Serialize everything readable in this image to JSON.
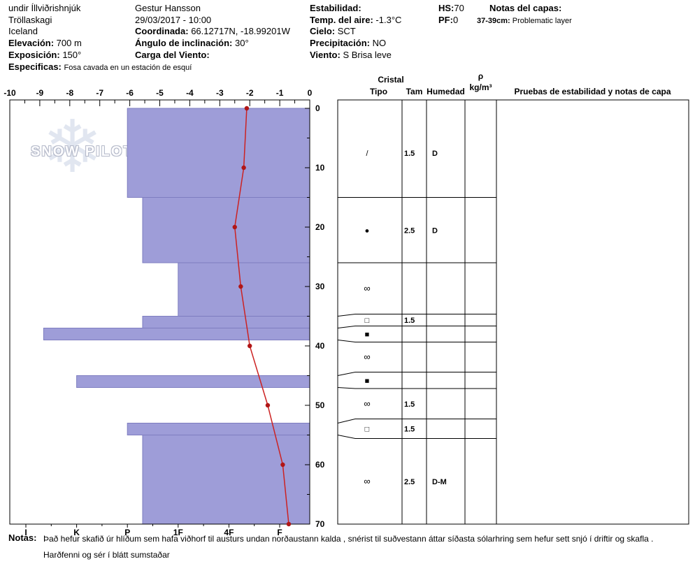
{
  "header": {
    "location": {
      "line1": "undir Íllviðrishnjúk",
      "line2": "Tröllaskagi",
      "line3": "Iceland"
    },
    "elevation": {
      "label": "Elevación:",
      "value": "700 m"
    },
    "aspect": {
      "label": "Exposición:",
      "value": "150°"
    },
    "specifics": {
      "label": "Especificas:",
      "value": "Fosa cavada en un estación de esquí"
    },
    "observer": {
      "name": "Gestur Hansson",
      "datetime": "29/03/2017 - 10:00"
    },
    "coordinates": {
      "label": "Coordinada:",
      "value": "66.12717N, -18.99201W"
    },
    "slope_angle": {
      "label": "Ángulo de inclinación:",
      "value": "30°"
    },
    "wind_loading": {
      "label": "Carga del Viento:",
      "value": ""
    },
    "stability": {
      "label": "Estabilidad:",
      "value": ""
    },
    "air_temp": {
      "label": "Temp. del aire:",
      "value": "-1.3°C"
    },
    "sky": {
      "label": "Cielo:",
      "value": "SCT"
    },
    "precip": {
      "label": "Precipitación:",
      "value": "NO"
    },
    "wind": {
      "label": "Viento:",
      "value": "S Brisa leve"
    },
    "hs": {
      "label": "HS:",
      "value": "70"
    },
    "pf": {
      "label": "PF:",
      "value": "0"
    },
    "layer_notes": {
      "label": "Notas del capas:",
      "entry_label": "37-39cm:",
      "entry_text": "Problematic layer"
    }
  },
  "logo": {
    "text": "SNOW PILOT",
    "flake": "❄"
  },
  "table": {
    "headers": {
      "cristal": "Cristal",
      "tipo": "Tipo",
      "tam": "Tam",
      "humedad": "Humedad",
      "rho": "ρ",
      "rho_units": "kg/m³",
      "tests": "Pruebas de estabilidad y notas de capa"
    }
  },
  "chart_data": {
    "type": "snow-profile",
    "depth_axis": {
      "side": "right",
      "unit": "cm",
      "ticks": [
        0,
        10,
        20,
        30,
        40,
        50,
        60,
        70
      ],
      "range": [
        0,
        70
      ]
    },
    "temperature_axis": {
      "side": "top",
      "unit": "°C",
      "ticks": [
        -10,
        -9,
        -8,
        -7,
        -6,
        -5,
        -4,
        -3,
        -2,
        -1,
        0
      ],
      "range": [
        -10,
        0
      ]
    },
    "hardness_axis": {
      "side": "bottom",
      "ticks": [
        "I",
        "K",
        "P",
        "1F",
        "4F",
        "F"
      ]
    },
    "temperature_profile": {
      "depths_cm": [
        0,
        10,
        20,
        30,
        40,
        50,
        60,
        70
      ],
      "temps_c": [
        -2.1,
        -2.2,
        -2.5,
        -2.3,
        -2.0,
        -1.4,
        -0.9,
        -0.7
      ]
    },
    "layers": [
      {
        "top_cm": 0,
        "bottom_cm": 15,
        "hardness": "P",
        "hardness_value": 4.0,
        "grain_type": "decomposing-fragments",
        "grain_symbol": "/",
        "size_mm": "1.5",
        "moisture": "D"
      },
      {
        "top_cm": 15,
        "bottom_cm": 26,
        "hardness": "P-",
        "hardness_value": 3.7,
        "grain_type": "round-grains",
        "grain_symbol": "●",
        "size_mm": "2.5",
        "moisture": "D"
      },
      {
        "top_cm": 26,
        "bottom_cm": 35,
        "hardness": "1F",
        "hardness_value": 3.0,
        "grain_type": "melt-forms",
        "grain_symbol": "∞",
        "size_mm": "",
        "moisture": ""
      },
      {
        "top_cm": 35,
        "bottom_cm": 37,
        "hardness": "P-",
        "hardness_value": 3.7,
        "grain_type": "faceted-crystals",
        "grain_symbol": "□",
        "size_mm": "1.5",
        "moisture": ""
      },
      {
        "top_cm": 37,
        "bottom_cm": 39,
        "hardness": "K+",
        "hardness_value": 5.65,
        "grain_type": "ice-layer",
        "grain_symbol": "■",
        "size_mm": "",
        "moisture": ""
      },
      {
        "top_cm": 39,
        "bottom_cm": 45,
        "hardness": "",
        "hardness_value": null,
        "grain_type": "melt-forms",
        "grain_symbol": "∞",
        "size_mm": "",
        "moisture": ""
      },
      {
        "top_cm": 45,
        "bottom_cm": 47,
        "hardness": "K",
        "hardness_value": 5.0,
        "grain_type": "ice-layer",
        "grain_symbol": "■",
        "size_mm": "",
        "moisture": ""
      },
      {
        "top_cm": 47,
        "bottom_cm": 53,
        "hardness": "",
        "hardness_value": null,
        "grain_type": "melt-forms",
        "grain_symbol": "∞",
        "size_mm": "1.5",
        "moisture": ""
      },
      {
        "top_cm": 53,
        "bottom_cm": 55,
        "hardness": "P",
        "hardness_value": 4.0,
        "grain_type": "faceted-crystals",
        "grain_symbol": "□",
        "size_mm": "1.5",
        "moisture": ""
      },
      {
        "top_cm": 55,
        "bottom_cm": 70,
        "hardness": "P-",
        "hardness_value": 3.7,
        "grain_type": "melt-forms",
        "grain_symbol": "∞",
        "size_mm": "2.5",
        "moisture": "D-M"
      }
    ],
    "colors": {
      "bar_fill": "#9e9dd8",
      "bar_stroke": "#7e7dc0",
      "temp_line": "#cc2222",
      "temp_dot": "#b11616",
      "axis": "#000000"
    }
  },
  "notes": {
    "label": "Notas:",
    "line1": "Það hefur skafið úr hlíðum sem hafa viðhorf til austurs undan norðaustann kalda , snérist til suðvestann áttar síðasta sólarhring sem hefur sett snjó í driftir og skafla .",
    "line2": "Harðfenni og sér í blátt sumstaðar"
  }
}
